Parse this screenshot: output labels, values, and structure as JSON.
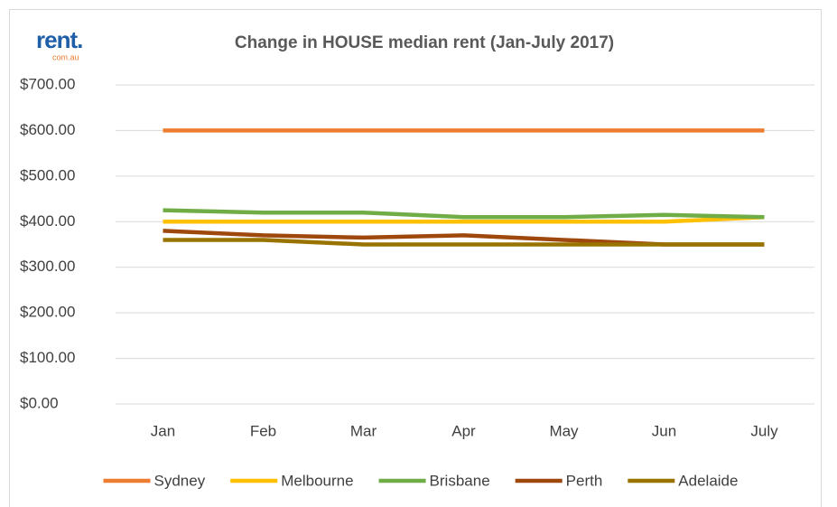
{
  "logo": {
    "text": "rent.",
    "sub": "com.au"
  },
  "chart_data": {
    "type": "line",
    "title": "Change in HOUSE median rent (Jan-July 2017)",
    "categories": [
      "Jan",
      "Feb",
      "Mar",
      "Apr",
      "May",
      "Jun",
      "July"
    ],
    "series": [
      {
        "name": "Sydney",
        "color": "#ed7d31",
        "values": [
          600,
          600,
          600,
          600,
          600,
          600,
          600
        ]
      },
      {
        "name": "Melbourne",
        "color": "#ffc000",
        "values": [
          400,
          400,
          400,
          400,
          400,
          400,
          410
        ]
      },
      {
        "name": "Brisbane",
        "color": "#70ad47",
        "values": [
          425,
          420,
          420,
          410,
          410,
          415,
          410
        ]
      },
      {
        "name": "Perth",
        "color": "#9e480e",
        "values": [
          380,
          370,
          365,
          370,
          360,
          350,
          350
        ]
      },
      {
        "name": "Adelaide",
        "color": "#997300",
        "values": [
          360,
          360,
          350,
          350,
          350,
          350,
          350
        ]
      }
    ],
    "ylim": [
      0,
      700
    ],
    "yticks": [
      {
        "value": 0,
        "label": "$0.00"
      },
      {
        "value": 100,
        "label": "$100.00"
      },
      {
        "value": 200,
        "label": "$200.00"
      },
      {
        "value": 300,
        "label": "$300.00"
      },
      {
        "value": 400,
        "label": "$400.00"
      },
      {
        "value": 500,
        "label": "$500.00"
      },
      {
        "value": 600,
        "label": "$600.00"
      },
      {
        "value": 700,
        "label": "$700.00"
      }
    ],
    "grid": true,
    "legend": "bottom"
  }
}
